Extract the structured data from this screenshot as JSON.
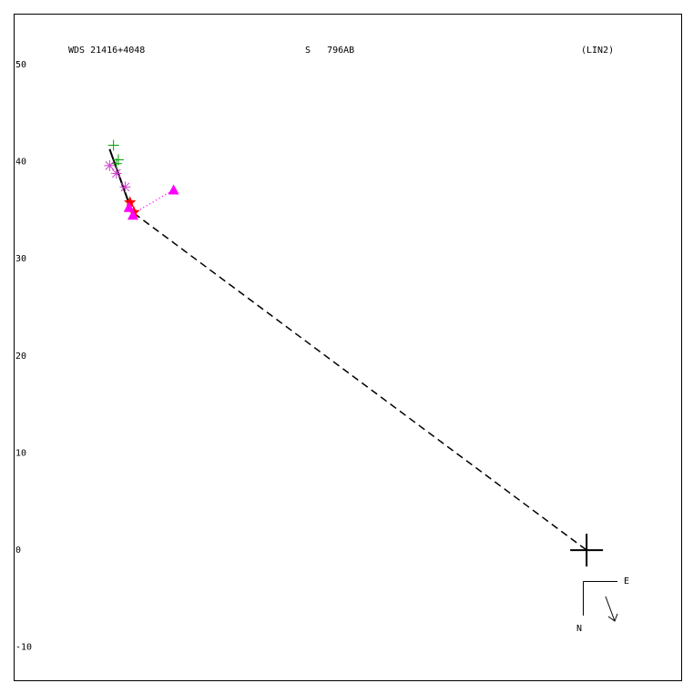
{
  "chart_data": {
    "type": "scatter",
    "title": "WDS 21416+4048",
    "subtitle": "S   796AB",
    "annotation": "(LIN2)",
    "compass": {
      "east": "E",
      "north": "N"
    },
    "xlim": [
      -59.1,
      9.85
    ],
    "ylim": [
      -13.5,
      55.25
    ],
    "yticks": [
      50,
      40,
      30,
      20,
      10,
      0,
      -10
    ],
    "grid": false,
    "primary": {
      "x": 0,
      "y": 0,
      "color": "#000000"
    },
    "lines": [
      {
        "style": "solid",
        "color": "#000000",
        "x": [
          -49.2,
          -46.7
        ],
        "y": [
          41.3,
          34.3
        ]
      },
      {
        "style": "dashed",
        "color": "#000000",
        "x": [
          -46.7,
          0
        ],
        "y": [
          34.7,
          0
        ]
      },
      {
        "style": "dotted",
        "color": "#ff00ff",
        "x": [
          -46.7,
          -42.6
        ],
        "y": [
          34.7,
          37.1
        ]
      }
    ],
    "series": [
      {
        "marker": "plus",
        "color": "#00a000",
        "x": [
          -48.8,
          -48.3,
          -48.5
        ],
        "y": [
          41.7,
          40.2,
          39.8
        ]
      },
      {
        "marker": "asterisk",
        "color": "#d040d0",
        "x": [
          -49.2,
          -48.5,
          -47.6
        ],
        "y": [
          39.6,
          38.8,
          37.4
        ]
      },
      {
        "marker": "star",
        "color": "#ff0000",
        "x": [
          -47.1,
          -46.7
        ],
        "y": [
          35.8,
          34.8
        ]
      },
      {
        "marker": "triangle",
        "color": "#ff00ff",
        "x": [
          -42.6,
          -47.2,
          -46.8
        ],
        "y": [
          37.1,
          35.3,
          34.5
        ]
      }
    ]
  }
}
